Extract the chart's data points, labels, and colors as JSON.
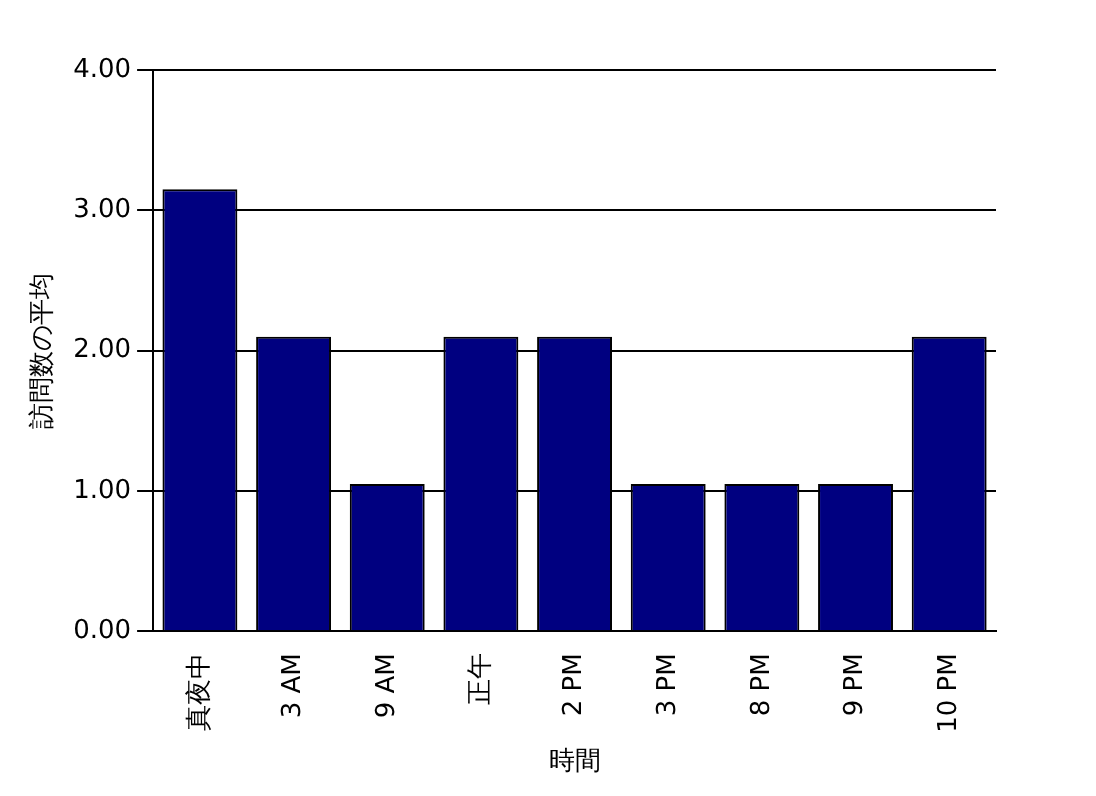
{
  "chart_data": {
    "type": "bar",
    "xlabel": "時間",
    "ylabel": "訪問数の平均",
    "categories": [
      "真夜中",
      "3 AM",
      "9 AM",
      "正午",
      "2 PM",
      "3 PM",
      "8 PM",
      "9 PM",
      "10 PM"
    ],
    "values": [
      3.15,
      2.1,
      1.05,
      2.1,
      2.1,
      1.05,
      1.05,
      1.05,
      2.1
    ],
    "color": "#000080",
    "ylim": [
      0,
      4
    ],
    "yticks": [
      {
        "value": 0,
        "label": "0.00"
      },
      {
        "value": 1,
        "label": "1.00"
      },
      {
        "value": 2,
        "label": "2.00"
      },
      {
        "value": 3,
        "label": "3.00"
      },
      {
        "value": 4,
        "label": "4.00"
      }
    ],
    "grid": "y",
    "legend": false
  }
}
